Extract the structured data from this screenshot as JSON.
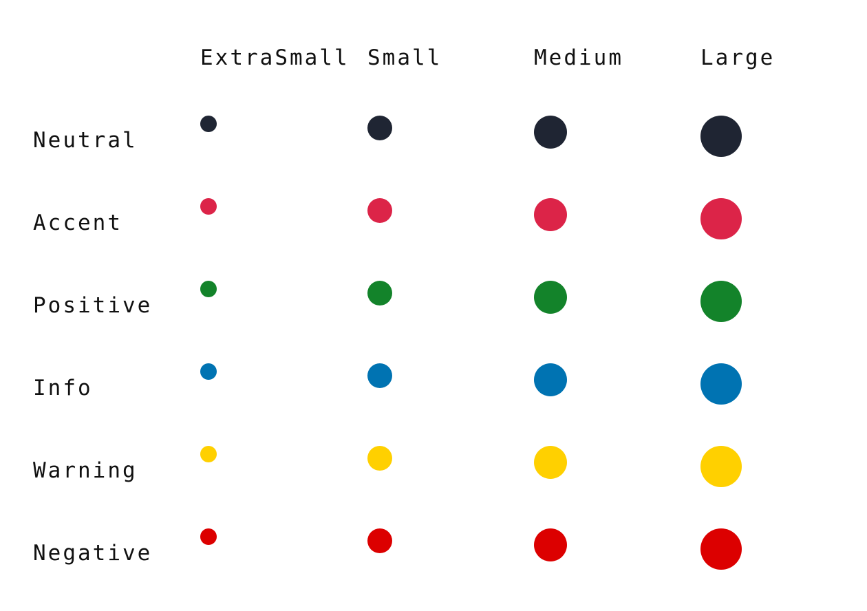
{
  "sizes": [
    {
      "key": "xs",
      "label": "ExtraSmall"
    },
    {
      "key": "s",
      "label": "Small"
    },
    {
      "key": "m",
      "label": "Medium"
    },
    {
      "key": "l",
      "label": "Large"
    }
  ],
  "variants": [
    {
      "key": "neutral",
      "label": "Neutral",
      "color": "#1f2533"
    },
    {
      "key": "accent",
      "label": "Accent",
      "color": "#dc2448"
    },
    {
      "key": "positive",
      "label": "Positive",
      "color": "#13832a"
    },
    {
      "key": "info",
      "label": "Info",
      "color": "#0073b2"
    },
    {
      "key": "warning",
      "label": "Warning",
      "color": "#ffd000"
    },
    {
      "key": "negative",
      "label": "Negative",
      "color": "#dc0000"
    }
  ]
}
